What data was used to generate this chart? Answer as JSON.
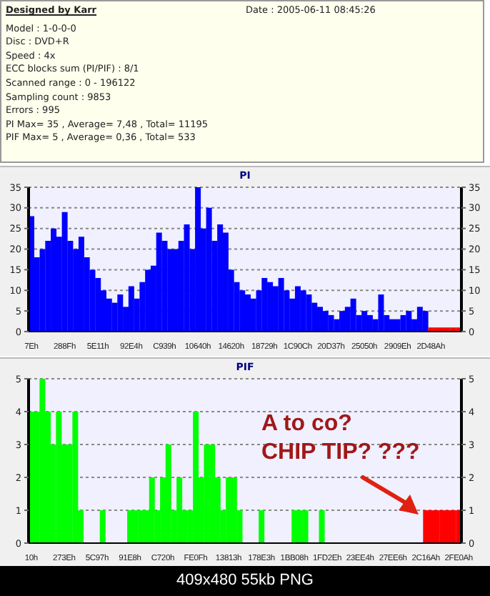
{
  "chart_data": [
    {
      "type": "other",
      "title": "Designed by Karr",
      "annotations": [
        "Date : 2005-06-11 08:45:26",
        "Model : 1-0-0-0",
        "Disc : DVD+R",
        "Speed : 4x",
        "ECC blocks sum (PI/PIF) : 8/1",
        "Scanned range : 0 - 196122",
        "Sampling count : 9853",
        "Errors : 995",
        "PI Max= 35 , Average= 7,48 , Total= 11195",
        "PIF Max= 5 , Average= 0,36 , Total= 533"
      ]
    },
    {
      "type": "bar",
      "title": "PI",
      "categories": [
        "7Eh",
        null,
        null,
        null,
        null,
        null,
        "288Fh",
        null,
        null,
        null,
        null,
        null,
        "5E11h",
        null,
        null,
        null,
        null,
        null,
        "92E4h",
        null,
        null,
        null,
        null,
        null,
        "C939h",
        null,
        null,
        null,
        null,
        null,
        "10640h",
        null,
        null,
        null,
        null,
        null,
        "14620h",
        null,
        null,
        null,
        null,
        null,
        "18729h",
        null,
        null,
        null,
        null,
        null,
        "1C90Ch",
        null,
        null,
        null,
        null,
        null,
        "20D37h",
        null,
        null,
        null,
        null,
        null,
        "25050h",
        null,
        null,
        null,
        null,
        null,
        "2909Eh",
        null,
        null,
        null,
        null,
        null,
        "2D48Ah",
        null,
        null,
        null,
        null,
        null
      ],
      "values": [
        28,
        18,
        20,
        22,
        25,
        23,
        29,
        22,
        20,
        23,
        18,
        15,
        13,
        10,
        8,
        7,
        9,
        6,
        11,
        8,
        12,
        15,
        16,
        24,
        22,
        20,
        20,
        22,
        26,
        20,
        35,
        25,
        30,
        22,
        26,
        24,
        15,
        12,
        10,
        9,
        8,
        10,
        13,
        12,
        11,
        13,
        10,
        8,
        11,
        10,
        9,
        7,
        6,
        5,
        4,
        3,
        5,
        6,
        8,
        4,
        5,
        4,
        3,
        9,
        4,
        3,
        3,
        4,
        5,
        3,
        6,
        5,
        1,
        1,
        1,
        1,
        1,
        1
      ],
      "colors": [
        "#0000ff",
        "#0000ff",
        "#0000ff",
        "#0000ff",
        "#0000ff",
        "#0000ff",
        "#0000ff",
        "#0000ff",
        "#0000ff",
        "#0000ff",
        "#0000ff",
        "#0000ff",
        "#0000ff",
        "#0000ff",
        "#0000ff",
        "#0000ff",
        "#0000ff",
        "#0000ff",
        "#0000ff",
        "#0000ff",
        "#0000ff",
        "#0000ff",
        "#0000ff",
        "#0000ff",
        "#0000ff",
        "#0000ff",
        "#0000ff",
        "#0000ff",
        "#0000ff",
        "#0000ff",
        "#0000ff",
        "#0000ff",
        "#0000ff",
        "#0000ff",
        "#0000ff",
        "#0000ff",
        "#0000ff",
        "#0000ff",
        "#0000ff",
        "#0000ff",
        "#0000ff",
        "#0000ff",
        "#0000ff",
        "#0000ff",
        "#0000ff",
        "#0000ff",
        "#0000ff",
        "#0000ff",
        "#0000ff",
        "#0000ff",
        "#0000ff",
        "#0000ff",
        "#0000ff",
        "#0000ff",
        "#0000ff",
        "#0000ff",
        "#0000ff",
        "#0000ff",
        "#0000ff",
        "#0000ff",
        "#0000ff",
        "#0000ff",
        "#0000ff",
        "#0000ff",
        "#0000ff",
        "#0000ff",
        "#0000ff",
        "#0000ff",
        "#0000ff",
        "#0000ff",
        "#0000ff",
        "#0000ff",
        "#ff0000",
        "#ff0000",
        "#ff0000",
        "#ff0000",
        "#ff0000",
        "#ff0000"
      ],
      "ylim": [
        0,
        35
      ],
      "yticks": [
        0,
        5,
        10,
        15,
        20,
        25,
        30,
        35
      ],
      "y2lim": [
        0,
        35
      ],
      "y2ticks": [
        0,
        5,
        10,
        15,
        20,
        25,
        30,
        35
      ],
      "grid": "y"
    },
    {
      "type": "bar",
      "title": "PIF",
      "categories": [
        "10h",
        null,
        null,
        null,
        null,
        null,
        "273Eh",
        null,
        null,
        null,
        null,
        null,
        "5C97h",
        null,
        null,
        null,
        null,
        null,
        "91E8h",
        null,
        null,
        null,
        null,
        null,
        "C720h",
        null,
        null,
        null,
        null,
        null,
        "FE0Fh",
        null,
        null,
        null,
        null,
        null,
        "13813h",
        null,
        null,
        null,
        null,
        null,
        "178E3h",
        null,
        null,
        null,
        null,
        null,
        "1BB08h",
        null,
        null,
        null,
        null,
        null,
        "1FD2Eh",
        null,
        null,
        null,
        null,
        null,
        "23EE4h",
        null,
        null,
        null,
        null,
        null,
        "27EE6h",
        null,
        null,
        null,
        null,
        null,
        "2C16Ah",
        null,
        null,
        null,
        null,
        null,
        "2FE0Ah"
      ],
      "values": [
        4,
        4,
        5,
        4,
        3,
        4,
        3,
        3,
        4,
        1,
        0,
        0,
        0,
        1,
        0,
        0,
        0,
        0,
        1,
        1,
        1,
        1,
        2,
        1,
        2,
        3,
        1,
        2,
        1,
        1,
        4,
        2,
        3,
        3,
        2,
        1,
        2,
        2,
        1,
        0,
        0,
        0,
        1,
        0,
        0,
        0,
        0,
        0,
        1,
        1,
        1,
        0,
        0,
        1,
        0,
        0,
        0,
        0,
        0,
        0,
        0,
        0,
        0,
        0,
        0,
        0,
        0,
        0,
        0,
        0,
        0,
        0,
        1,
        1,
        1,
        1,
        1,
        1,
        1
      ],
      "colors": [
        "#00ff00",
        "#00ff00",
        "#00ff00",
        "#00ff00",
        "#00ff00",
        "#00ff00",
        "#00ff00",
        "#00ff00",
        "#00ff00",
        "#00ff00",
        "#00ff00",
        "#00ff00",
        "#00ff00",
        "#00ff00",
        "#00ff00",
        "#00ff00",
        "#00ff00",
        "#00ff00",
        "#00ff00",
        "#00ff00",
        "#00ff00",
        "#00ff00",
        "#00ff00",
        "#00ff00",
        "#00ff00",
        "#00ff00",
        "#00ff00",
        "#00ff00",
        "#00ff00",
        "#00ff00",
        "#00ff00",
        "#00ff00",
        "#00ff00",
        "#00ff00",
        "#00ff00",
        "#00ff00",
        "#00ff00",
        "#00ff00",
        "#00ff00",
        "#00ff00",
        "#00ff00",
        "#00ff00",
        "#00ff00",
        "#00ff00",
        "#00ff00",
        "#00ff00",
        "#00ff00",
        "#00ff00",
        "#00ff00",
        "#00ff00",
        "#00ff00",
        "#00ff00",
        "#00ff00",
        "#00ff00",
        "#00ff00",
        "#00ff00",
        "#00ff00",
        "#00ff00",
        "#00ff00",
        "#00ff00",
        "#00ff00",
        "#00ff00",
        "#00ff00",
        "#00ff00",
        "#00ff00",
        "#00ff00",
        "#00ff00",
        "#00ff00",
        "#00ff00",
        "#00ff00",
        "#00ff00",
        "#00ff00",
        "#ff0000",
        "#ff0000",
        "#ff0000",
        "#ff0000",
        "#ff0000",
        "#ff0000",
        "#ff0000"
      ],
      "ylim": [
        0,
        5
      ],
      "yticks": [
        0,
        1,
        2,
        3,
        4,
        5
      ],
      "y2lim": [
        0,
        5
      ],
      "y2ticks": [
        0,
        1,
        2,
        3,
        4,
        5
      ],
      "grid": "y",
      "annotations": [
        "A to co?",
        "CHIP TIP? ???",
        "409x480 55kb PNG"
      ]
    }
  ]
}
